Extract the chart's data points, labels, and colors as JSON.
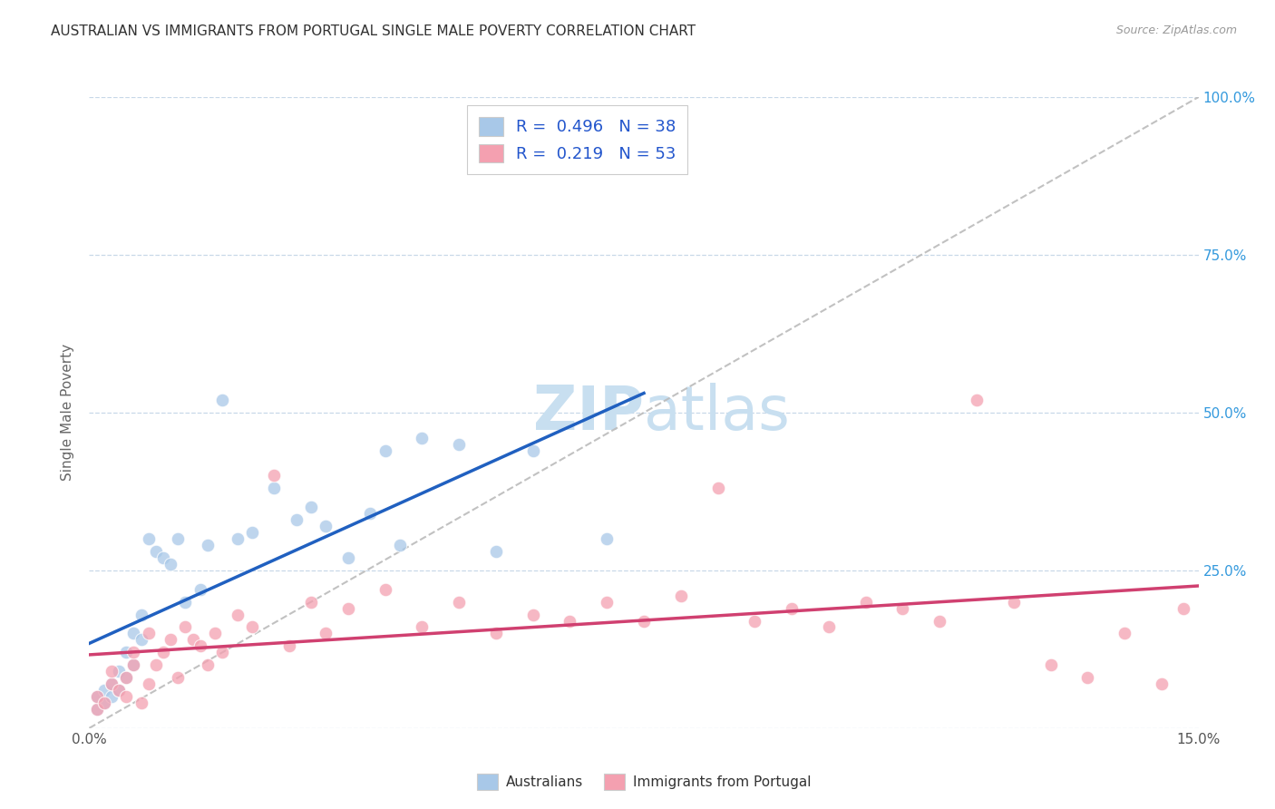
{
  "title": "AUSTRALIAN VS IMMIGRANTS FROM PORTUGAL SINGLE MALE POVERTY CORRELATION CHART",
  "source": "Source: ZipAtlas.com",
  "ylabel": "Single Male Poverty",
  "xlim": [
    0.0,
    0.15
  ],
  "ylim": [
    0.0,
    1.0
  ],
  "blue_color": "#a8c8e8",
  "pink_color": "#f4a0b0",
  "blue_line_color": "#2060c0",
  "pink_line_color": "#d04070",
  "blue_r": 0.496,
  "blue_n": 38,
  "pink_r": 0.219,
  "pink_n": 53,
  "australians_x": [
    0.001,
    0.001,
    0.002,
    0.002,
    0.003,
    0.003,
    0.004,
    0.004,
    0.005,
    0.005,
    0.006,
    0.006,
    0.007,
    0.007,
    0.008,
    0.009,
    0.01,
    0.011,
    0.012,
    0.013,
    0.015,
    0.016,
    0.018,
    0.02,
    0.022,
    0.025,
    0.028,
    0.03,
    0.032,
    0.035,
    0.038,
    0.04,
    0.042,
    0.045,
    0.05,
    0.055,
    0.06,
    0.07
  ],
  "australians_y": [
    0.03,
    0.05,
    0.04,
    0.06,
    0.05,
    0.07,
    0.06,
    0.09,
    0.08,
    0.12,
    0.1,
    0.15,
    0.14,
    0.18,
    0.3,
    0.28,
    0.27,
    0.26,
    0.3,
    0.2,
    0.22,
    0.29,
    0.52,
    0.3,
    0.31,
    0.38,
    0.33,
    0.35,
    0.32,
    0.27,
    0.34,
    0.44,
    0.29,
    0.46,
    0.45,
    0.28,
    0.44,
    0.3
  ],
  "portugal_x": [
    0.001,
    0.001,
    0.002,
    0.003,
    0.003,
    0.004,
    0.005,
    0.005,
    0.006,
    0.006,
    0.007,
    0.008,
    0.008,
    0.009,
    0.01,
    0.011,
    0.012,
    0.013,
    0.014,
    0.015,
    0.016,
    0.017,
    0.018,
    0.02,
    0.022,
    0.025,
    0.027,
    0.03,
    0.032,
    0.035,
    0.04,
    0.045,
    0.05,
    0.055,
    0.06,
    0.065,
    0.07,
    0.075,
    0.08,
    0.085,
    0.09,
    0.095,
    0.1,
    0.105,
    0.11,
    0.115,
    0.12,
    0.125,
    0.13,
    0.135,
    0.14,
    0.145,
    0.148
  ],
  "portugal_y": [
    0.03,
    0.05,
    0.04,
    0.07,
    0.09,
    0.06,
    0.05,
    0.08,
    0.1,
    0.12,
    0.04,
    0.07,
    0.15,
    0.1,
    0.12,
    0.14,
    0.08,
    0.16,
    0.14,
    0.13,
    0.1,
    0.15,
    0.12,
    0.18,
    0.16,
    0.4,
    0.13,
    0.2,
    0.15,
    0.19,
    0.22,
    0.16,
    0.2,
    0.15,
    0.18,
    0.17,
    0.2,
    0.17,
    0.21,
    0.38,
    0.17,
    0.19,
    0.16,
    0.2,
    0.19,
    0.17,
    0.52,
    0.2,
    0.1,
    0.08,
    0.15,
    0.07,
    0.19
  ],
  "background_color": "#ffffff",
  "grid_color": "#c8d8e8",
  "watermark_color": "#c8dff0",
  "right_yaxis_color": "#3399dd",
  "title_color": "#333333",
  "source_color": "#999999"
}
